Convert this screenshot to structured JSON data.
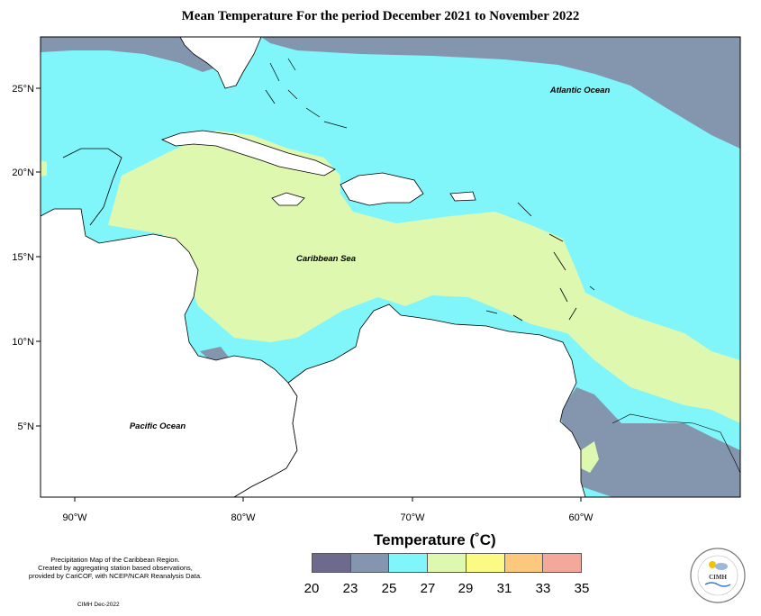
{
  "title": "Mean Temperature For the period December 2021 to November 2022",
  "labels": {
    "atlantic": "Atlantic Ocean",
    "caribbean": "Caribbean Sea",
    "pacific": "Pacific Ocean"
  },
  "axes": {
    "lat_ticks": [
      "25°N",
      "20°N",
      "15°N",
      "10°N",
      "5°N"
    ],
    "lon_ticks": [
      "90°W",
      "80°W",
      "70°W",
      "60°W"
    ]
  },
  "legend": {
    "title": "Temperature (˚C)",
    "values": [
      "20",
      "23",
      "25",
      "27",
      "29",
      "31",
      "33",
      "35"
    ],
    "colors": [
      "#6e6a8e",
      "#8396ad",
      "#80f5fa",
      "#dff8b0",
      "#fbfb84",
      "#fbc87e",
      "#f2a89a"
    ]
  },
  "notes": {
    "line1": "Precipitation Map of the Caribbean Region.",
    "line2": "Created by aggregating station based observations,",
    "line3": "provided by CariCOF, with NCEP/NCAR Reanalysis Data.",
    "credit": "CIMH Dec-2022"
  },
  "logo_text": "CIMH",
  "zone_colors": {
    "cool": "#8396ad",
    "mild": "#80f5fa",
    "warm": "#dff8b0",
    "land": "#ffffff"
  }
}
